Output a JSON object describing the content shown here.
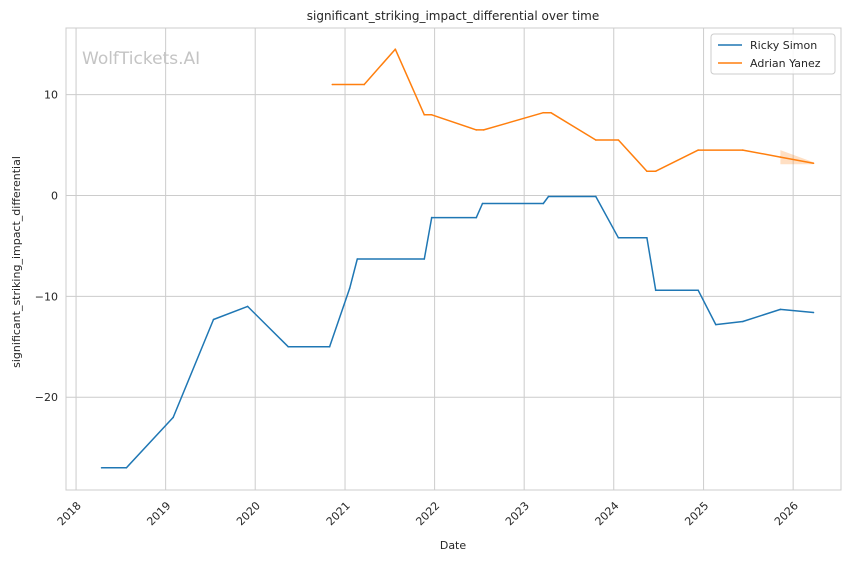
{
  "chart_data": {
    "type": "line",
    "title": "significant_striking_impact_differential over time",
    "xlabel": "Date",
    "ylabel": "significant_striking_impact_differential",
    "watermark": "WolfTickets.AI",
    "x_ticks": [
      "2018",
      "2019",
      "2020",
      "2021",
      "2022",
      "2023",
      "2024",
      "2025",
      "2026"
    ],
    "y_ticks": [
      -20,
      -10,
      0,
      10
    ],
    "xlim": [
      "2017-11-21",
      "2026-07-15"
    ],
    "ylim": [
      -29.2,
      16.6
    ],
    "grid": true,
    "legend_position": "top-right",
    "series": [
      {
        "name": "Ricky Simon",
        "color": "#1f77b4",
        "points": [
          [
            "2018-04-15",
            -27.0
          ],
          [
            "2018-07-25",
            -27.0
          ],
          [
            "2019-02-01",
            -22.0
          ],
          [
            "2019-07-15",
            -12.3
          ],
          [
            "2019-12-01",
            -11.0
          ],
          [
            "2020-05-15",
            -15.0
          ],
          [
            "2020-10-30",
            -15.0
          ],
          [
            "2021-01-20",
            -9.2
          ],
          [
            "2021-02-20",
            -6.3
          ],
          [
            "2021-11-20",
            -6.3
          ],
          [
            "2021-12-20",
            -2.2
          ],
          [
            "2022-06-20",
            -2.2
          ],
          [
            "2022-07-15",
            -0.8
          ],
          [
            "2023-03-20",
            -0.8
          ],
          [
            "2023-04-10",
            -0.1
          ],
          [
            "2023-10-20",
            -0.1
          ],
          [
            "2024-01-20",
            -4.2
          ],
          [
            "2024-05-15",
            -4.2
          ],
          [
            "2024-06-20",
            -9.4
          ],
          [
            "2024-12-10",
            -9.4
          ],
          [
            "2025-02-20",
            -12.8
          ],
          [
            "2025-06-10",
            -12.5
          ],
          [
            "2025-11-10",
            -11.3
          ],
          [
            "2026-03-25",
            -11.6
          ]
        ]
      },
      {
        "name": "Adrian Yanez",
        "color": "#ff7f0e",
        "points": [
          [
            "2020-11-10",
            11.0
          ],
          [
            "2021-03-20",
            11.0
          ],
          [
            "2021-07-25",
            14.5
          ],
          [
            "2021-11-20",
            8.0
          ],
          [
            "2021-12-20",
            8.0
          ],
          [
            "2022-06-20",
            6.5
          ],
          [
            "2022-07-20",
            6.5
          ],
          [
            "2023-03-20",
            8.2
          ],
          [
            "2023-04-20",
            8.2
          ],
          [
            "2023-10-20",
            5.5
          ],
          [
            "2024-01-20",
            5.5
          ],
          [
            "2024-05-15",
            2.4
          ],
          [
            "2024-06-20",
            2.4
          ],
          [
            "2024-12-10",
            4.5
          ],
          [
            "2025-06-10",
            4.5
          ],
          [
            "2025-11-10",
            3.8
          ],
          [
            "2026-03-25",
            3.2
          ]
        ]
      }
    ]
  }
}
